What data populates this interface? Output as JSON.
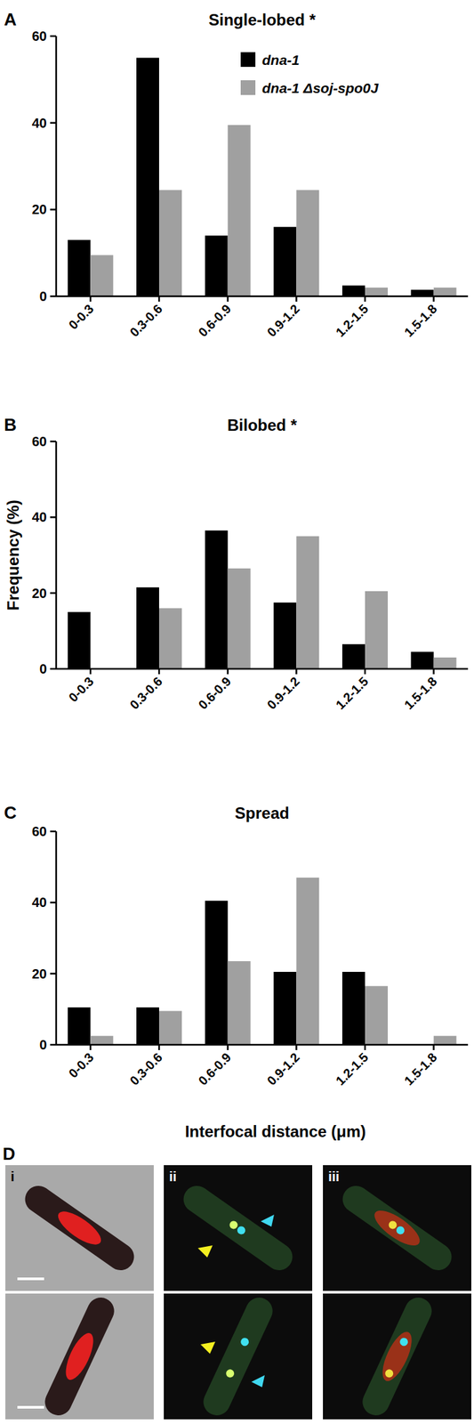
{
  "chart_data": [
    {
      "type": "bar",
      "panel": "A",
      "title": "Single-lobed *",
      "categories": [
        "0-0.3",
        "0.3-0.6",
        "0.6-0.9",
        "0.9-1.2",
        "1.2-1.5",
        "1.5-1.8"
      ],
      "series": [
        {
          "name": "dna-1",
          "color": "#000000",
          "values": [
            13,
            55,
            14,
            16,
            2.5,
            1.5
          ]
        },
        {
          "name": "dna-1 Δsoj-spo0J",
          "color": "#a0a0a0",
          "values": [
            9.5,
            24.5,
            39.5,
            24.5,
            2,
            2
          ]
        }
      ],
      "ylim": [
        0,
        60
      ],
      "yticks": [
        0,
        20,
        40,
        60
      ],
      "legend": "top"
    },
    {
      "type": "bar",
      "panel": "B",
      "title": "Bilobed *",
      "y_label": "Frequency (%)",
      "categories": [
        "0-0.3",
        "0.3-0.6",
        "0.6-0.9",
        "0.9-1.2",
        "1.2-1.5",
        "1.5-1.8"
      ],
      "series": [
        {
          "color": "#000000",
          "values": [
            15,
            21.5,
            36.5,
            17.5,
            6.5,
            4.5
          ]
        },
        {
          "color": "#a0a0a0",
          "values": [
            0,
            16,
            26.5,
            35,
            20.5,
            3
          ]
        }
      ],
      "ylim": [
        0,
        60
      ],
      "yticks": [
        0,
        20,
        40,
        60
      ]
    },
    {
      "type": "bar",
      "panel": "C",
      "title": "Spread",
      "x_label": "Interfocal distance (μm)",
      "categories": [
        "0-0.3",
        "0.3-0.6",
        "0.6-0.9",
        "0.9-1.2",
        "1.2-1.5",
        "1.5-1.8"
      ],
      "series": [
        {
          "color": "#000000",
          "values": [
            10.5,
            10.5,
            40.5,
            20.5,
            20.5,
            0
          ]
        },
        {
          "color": "#a0a0a0",
          "values": [
            2.5,
            9.5,
            23.5,
            47,
            16.5,
            2.5
          ]
        }
      ],
      "ylim": [
        0,
        60
      ],
      "yticks": [
        0,
        20,
        40,
        60
      ]
    }
  ],
  "panel_d": {
    "panel": "D",
    "columns": [
      "i",
      "ii",
      "iii"
    ]
  }
}
